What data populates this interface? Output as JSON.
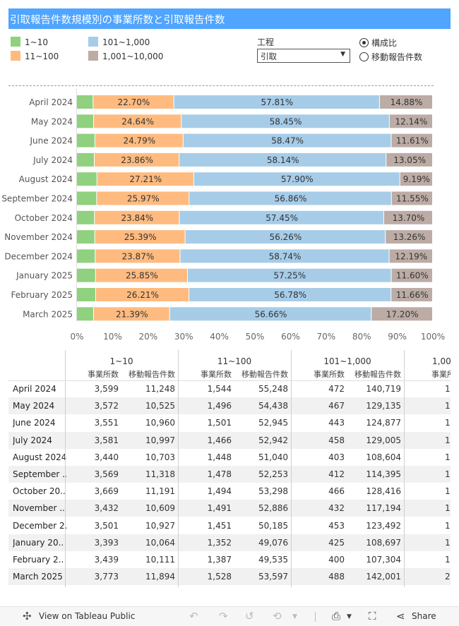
{
  "title": "引取報告件数規模別の事業所数と引取報告件数",
  "legend": [
    {
      "label": "1~10",
      "color": "#8fd17e"
    },
    {
      "label": "11~100",
      "color": "#ffbb7f"
    },
    {
      "label": "101~1,000",
      "color": "#a6cce8"
    },
    {
      "label": "1,001~10,000",
      "color": "#bcaca5"
    }
  ],
  "filter": {
    "label": "工程",
    "value": "引取"
  },
  "radio": [
    {
      "label": "構成比",
      "selected": true
    },
    {
      "label": "移動報告件数",
      "selected": false
    }
  ],
  "chart_data": {
    "type": "bar",
    "orientation": "horizontal",
    "stacked": true,
    "categories": [
      "April 2024",
      "May 2024",
      "June 2024",
      "July 2024",
      "August 2024",
      "September 2024",
      "October 2024",
      "November 2024",
      "December 2024",
      "January 2025",
      "February 2025",
      "March 2025"
    ],
    "series": [
      {
        "name": "1~10",
        "values": [
          4.61,
          4.77,
          5.13,
          4.95,
          5.7,
          5.62,
          5.01,
          5.09,
          5.2,
          5.3,
          5.35,
          4.75
        ],
        "labels": [
          "",
          "",
          "",
          "",
          "",
          "",
          "",
          "",
          "",
          "",
          "",
          ""
        ]
      },
      {
        "name": "11~100",
        "values": [
          22.7,
          24.64,
          24.79,
          23.86,
          27.21,
          25.97,
          23.84,
          25.39,
          23.87,
          25.85,
          26.21,
          21.39
        ],
        "labels": [
          "22.70%",
          "24.64%",
          "24.79%",
          "23.86%",
          "27.21%",
          "25.97%",
          "23.84%",
          "25.39%",
          "23.87%",
          "25.85%",
          "26.21%",
          "21.39%"
        ]
      },
      {
        "name": "101~1,000",
        "values": [
          57.81,
          58.45,
          58.47,
          58.14,
          57.9,
          56.86,
          57.45,
          56.26,
          58.74,
          57.25,
          56.78,
          56.66
        ],
        "labels": [
          "57.81%",
          "58.45%",
          "58.47%",
          "58.14%",
          "57.90%",
          "56.86%",
          "57.45%",
          "56.26%",
          "58.74%",
          "57.25%",
          "56.78%",
          "56.66%"
        ]
      },
      {
        "name": "1,001~10,000",
        "values": [
          14.88,
          12.14,
          11.61,
          13.05,
          9.19,
          11.55,
          13.7,
          13.26,
          12.19,
          11.6,
          11.66,
          17.2
        ],
        "labels": [
          "14.88%",
          "12.14%",
          "11.61%",
          "13.05%",
          "9.19%",
          "11.55%",
          "13.70%",
          "13.26%",
          "12.19%",
          "11.60%",
          "11.66%",
          "17.20%"
        ]
      }
    ],
    "xlim": [
      0,
      100
    ],
    "xticks": [
      "0%",
      "10%",
      "20%",
      "30%",
      "40%",
      "50%",
      "60%",
      "70%",
      "80%",
      "90%",
      "100%"
    ]
  },
  "table": {
    "groups": [
      "1~10",
      "11~100",
      "101~1,000",
      "1,00"
    ],
    "sub_headers": [
      "事業所数",
      "移動報告件数"
    ],
    "rows": [
      {
        "label": "April 2024",
        "values": [
          "3,599",
          "11,248",
          "1,544",
          "55,248",
          "472",
          "140,719",
          "1"
        ]
      },
      {
        "label": "May 2024",
        "values": [
          "3,572",
          "10,525",
          "1,496",
          "54,438",
          "467",
          "129,135",
          "1"
        ]
      },
      {
        "label": "June 2024",
        "values": [
          "3,551",
          "10,960",
          "1,501",
          "52,945",
          "443",
          "124,877",
          "1"
        ]
      },
      {
        "label": "July 2024",
        "values": [
          "3,581",
          "10,997",
          "1,466",
          "52,942",
          "458",
          "129,005",
          "1"
        ]
      },
      {
        "label": "August 2024",
        "values": [
          "3,440",
          "10,703",
          "1,448",
          "51,040",
          "403",
          "108,604",
          "1"
        ]
      },
      {
        "label": "September ..",
        "values": [
          "3,569",
          "11,318",
          "1,478",
          "52,253",
          "412",
          "114,395",
          "1"
        ]
      },
      {
        "label": "October 20..",
        "values": [
          "3,669",
          "11,191",
          "1,494",
          "53,298",
          "466",
          "128,416",
          "1"
        ]
      },
      {
        "label": "November ..",
        "values": [
          "3,432",
          "10,609",
          "1,491",
          "52,886",
          "432",
          "117,194",
          "1"
        ]
      },
      {
        "label": "December 2..",
        "values": [
          "3,501",
          "10,927",
          "1,451",
          "50,185",
          "453",
          "123,492",
          "1"
        ]
      },
      {
        "label": "January 20..",
        "values": [
          "3,393",
          "10,064",
          "1,352",
          "49,076",
          "425",
          "108,697",
          "1"
        ]
      },
      {
        "label": "February 2..",
        "values": [
          "3,439",
          "10,111",
          "1,387",
          "49,535",
          "400",
          "107,304",
          "1"
        ]
      },
      {
        "label": "March 2025",
        "values": [
          "3,773",
          "11,894",
          "1,528",
          "53,597",
          "488",
          "142,001",
          "2"
        ]
      }
    ]
  },
  "footer": {
    "view_label": "View on Tableau Public",
    "share_label": "Share"
  }
}
